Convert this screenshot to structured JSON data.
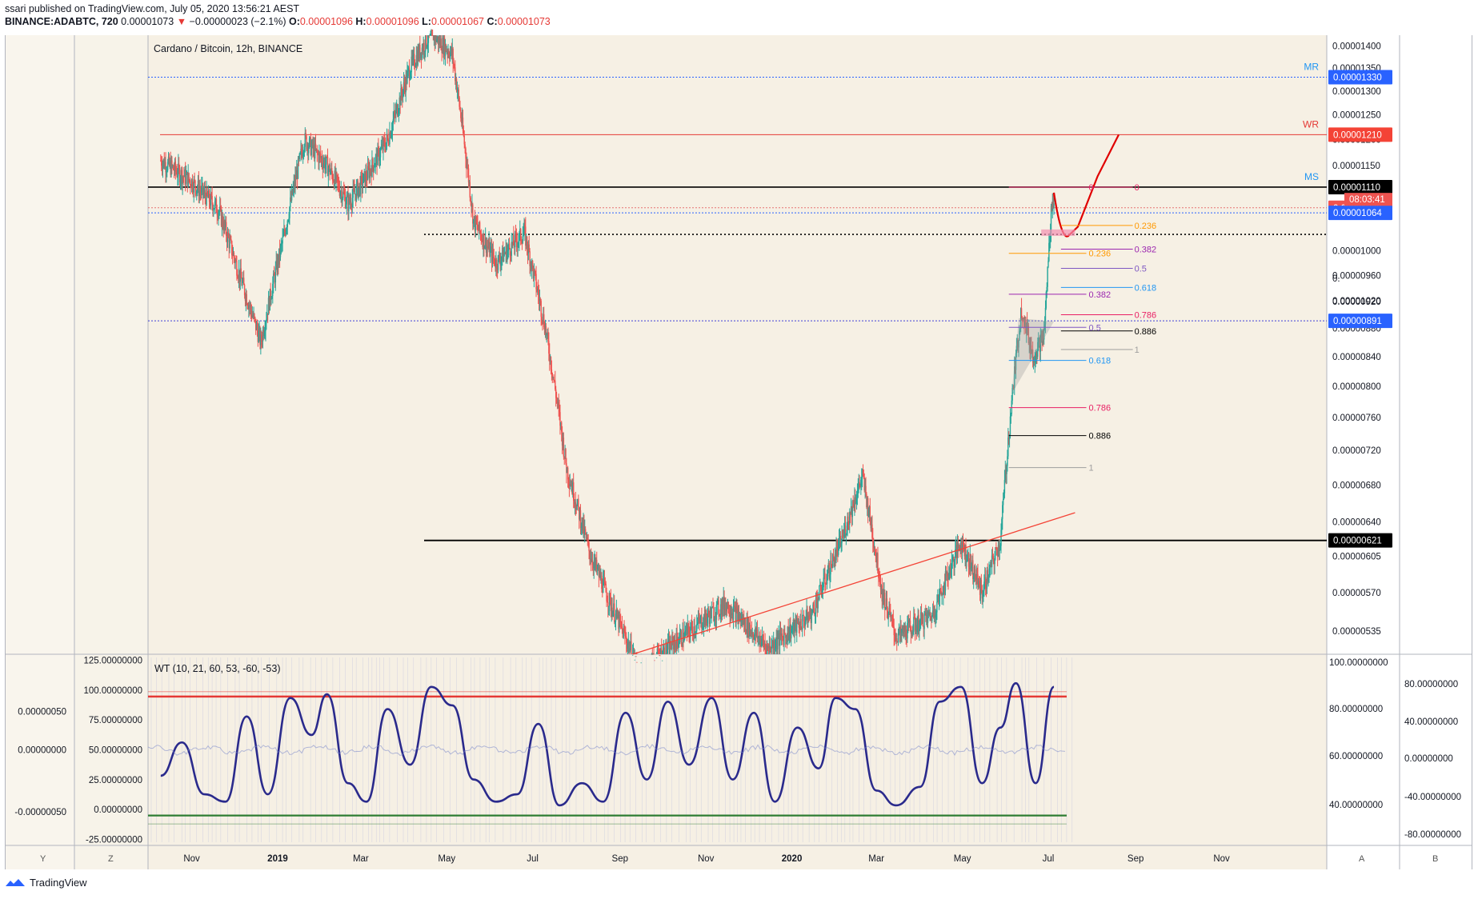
{
  "header": {
    "published": "ssari published on TradingView.com, July 05, 2020 13:56:21 AEST",
    "symbol": "BINANCE:ADABTC, 720",
    "last": "0.00001073",
    "change": "−0.00000023 (−2.1%)",
    "o_label": "O:",
    "o": "0.00001096",
    "h_label": "H:",
    "h": "0.00001096",
    "l_label": "L:",
    "l": "0.00001067",
    "c_label": "C:",
    "c": "0.00001073"
  },
  "chart": {
    "title": "Cardano / Bitcoin, 12h, BINANCE",
    "left_corner": "Y",
    "left_corner2": "Z",
    "right_corner": "A",
    "right_corner2": "B",
    "countdown": "08:03:41"
  },
  "oscillator": {
    "label": "WT (10, 21, 60, 53, -60, -53)"
  },
  "footer": {
    "logo_text": "TradingView"
  },
  "colors": {
    "background": "#f6f0e4",
    "candle_up": "#26a69a",
    "candle_down": "#ef5350",
    "fib_red": "#e91e63",
    "fib_orange": "#ff9800",
    "fib_purple": "#9c27b0",
    "fib_blue": "#2196f3",
    "oscillator_line": "#2a2a8c"
  },
  "chart_data": {
    "type": "candlestick",
    "symbol": "BINANCE:ADABTC",
    "x_ticks": [
      "Nov",
      "2019",
      "Mar",
      "May",
      "Jul",
      "Sep",
      "Nov",
      "2020",
      "Mar",
      "May",
      "Jul",
      "Sep",
      "Nov"
    ],
    "y_ticks": [
      "0.00001400",
      "0.00001350",
      "0.00001300",
      "0.00001250",
      "0.00001200",
      "0.00001150",
      "0.00001000",
      "0.00000960",
      "0.00000920",
      "0.00000880",
      "0.00000840",
      "0.00000800",
      "0.00000760",
      "0.00000720",
      "0.00000680",
      "0.00000640",
      "0.00000605",
      "0.00000570",
      "0.00000535"
    ],
    "y_ticks_partial": [
      "0.",
      "0.00001020"
    ],
    "y_scale": "log",
    "price_labels": [
      {
        "value": "0.00001330",
        "note": "MR"
      },
      {
        "value": "0.00001210",
        "note": "WR"
      },
      {
        "value": "0.00001110",
        "note": "MS"
      },
      {
        "value": "0.00001073"
      },
      {
        "value": "0.00001064"
      },
      {
        "value": "0.00000891"
      },
      {
        "value": "0.00000621"
      }
    ],
    "levels": [
      "MR",
      "WR",
      "MS"
    ],
    "fib_right": [
      "0",
      "0.236",
      "0.382",
      "0.5",
      "0.618",
      "0.786",
      "0.886",
      "1"
    ],
    "fib_left": [
      "0",
      "0.236",
      "0.382",
      "0.5",
      "0.618",
      "0.786",
      "0.886",
      "1"
    ],
    "price_path": [
      [
        "2018-10-10",
        1.16e-05
      ],
      [
        "2018-11-01",
        1.12e-05
      ],
      [
        "2018-11-20",
        1.07e-05
      ],
      [
        "2018-12-05",
        9.6e-06
      ],
      [
        "2018-12-20",
        8.6e-06
      ],
      [
        "2019-01-05",
        1.02e-05
      ],
      [
        "2019-01-20",
        1.2e-05
      ],
      [
        "2019-02-05",
        1.15e-05
      ],
      [
        "2019-02-20",
        1.08e-05
      ],
      [
        "2019-03-05",
        1.13e-05
      ],
      [
        "2019-03-20",
        1.2e-05
      ],
      [
        "2019-04-05",
        1.35e-05
      ],
      [
        "2019-04-20",
        1.43e-05
      ],
      [
        "2019-05-05",
        1.38e-05
      ],
      [
        "2019-05-20",
        1.05e-05
      ],
      [
        "2019-06-05",
        9.8e-06
      ],
      [
        "2019-06-25",
        1.03e-05
      ],
      [
        "2019-07-10",
        8.8e-06
      ],
      [
        "2019-07-25",
        7e-06
      ],
      [
        "2019-08-10",
        6.1e-06
      ],
      [
        "2019-08-25",
        5.6e-06
      ],
      [
        "2019-09-15",
        5e-06
      ],
      [
        "2019-10-15",
        5.3e-06
      ],
      [
        "2019-11-15",
        5.6e-06
      ],
      [
        "2019-12-15",
        5.2e-06
      ],
      [
        "2020-01-15",
        5.5e-06
      ],
      [
        "2020-02-05",
        6.2e-06
      ],
      [
        "2020-02-20",
        6.9e-06
      ],
      [
        "2020-03-05",
        5.7e-06
      ],
      [
        "2020-03-15",
        5.3e-06
      ],
      [
        "2020-04-10",
        5.5e-06
      ],
      [
        "2020-04-30",
        6.2e-06
      ],
      [
        "2020-05-15",
        5.7e-06
      ],
      [
        "2020-05-28",
        6.2e-06
      ],
      [
        "2020-06-05",
        7.8e-06
      ],
      [
        "2020-06-12",
        9.1e-06
      ],
      [
        "2020-06-20",
        8.4e-06
      ],
      [
        "2020-06-28",
        8.7e-06
      ],
      [
        "2020-07-04",
        1.1e-05
      ],
      [
        "2020-07-05",
        1.073e-05
      ]
    ],
    "projection": [
      [
        "2020-07-05",
        1.1e-05
      ],
      [
        "2020-07-15",
        1.024e-05
      ],
      [
        "2020-07-22",
        1.04e-05
      ],
      [
        "2020-08-05",
        1.13e-05
      ],
      [
        "2020-08-20",
        1.21e-05
      ]
    ],
    "trendline": [
      [
        "2019-09-10",
        4.9e-06
      ],
      [
        "2020-07-20",
        6.5e-06
      ]
    ],
    "oscillator": {
      "name": "WT (10, 21, 60, 53, -60, -53)",
      "left_axis": [
        "0.00000050",
        "0.00000000",
        "-0.00000050"
      ],
      "inner_axis": [
        "125.00000000",
        "100.00000000",
        "75.00000000",
        "50.00000000",
        "25.00000000",
        "0.00000000",
        "-25.00000000"
      ],
      "right_axis_a": [
        "100.00000000",
        "80.00000000",
        "60.00000000",
        "40.00000000"
      ],
      "right_axis_b": [
        "80.00000000",
        "40.00000000",
        "0.00000000",
        "-40.00000000",
        "-80.00000000"
      ],
      "overbought": 53,
      "oversold": -53,
      "wt_path": [
        [
          "2018-10-10",
          -35
        ],
        [
          "2018-10-25",
          10
        ],
        [
          "2018-11-10",
          -60
        ],
        [
          "2018-11-25",
          -70
        ],
        [
          "2018-12-10",
          45
        ],
        [
          "2018-12-25",
          -60
        ],
        [
          "2019-01-10",
          70
        ],
        [
          "2019-01-25",
          20
        ],
        [
          "2019-02-05",
          75
        ],
        [
          "2019-02-20",
          -45
        ],
        [
          "2019-03-05",
          -70
        ],
        [
          "2019-03-20",
          55
        ],
        [
          "2019-04-05",
          -20
        ],
        [
          "2019-04-20",
          85
        ],
        [
          "2019-05-05",
          60
        ],
        [
          "2019-05-20",
          -40
        ],
        [
          "2019-06-05",
          -70
        ],
        [
          "2019-06-20",
          -60
        ],
        [
          "2019-07-05",
          35
        ],
        [
          "2019-07-20",
          -75
        ],
        [
          "2019-08-05",
          -45
        ],
        [
          "2019-08-20",
          -70
        ],
        [
          "2019-09-05",
          50
        ],
        [
          "2019-09-20",
          -40
        ],
        [
          "2019-10-05",
          65
        ],
        [
          "2019-10-20",
          -20
        ],
        [
          "2019-11-05",
          70
        ],
        [
          "2019-11-20",
          -40
        ],
        [
          "2019-12-05",
          50
        ],
        [
          "2019-12-20",
          -70
        ],
        [
          "2020-01-05",
          30
        ],
        [
          "2020-01-20",
          -25
        ],
        [
          "2020-02-01",
          70
        ],
        [
          "2020-02-15",
          55
        ],
        [
          "2020-03-01",
          -55
        ],
        [
          "2020-03-15",
          -75
        ],
        [
          "2020-04-01",
          -50
        ],
        [
          "2020-04-15",
          65
        ],
        [
          "2020-04-30",
          85
        ],
        [
          "2020-05-15",
          -45
        ],
        [
          "2020-05-28",
          30
        ],
        [
          "2020-06-08",
          90
        ],
        [
          "2020-06-22",
          -45
        ],
        [
          "2020-07-05",
          85
        ]
      ]
    }
  }
}
